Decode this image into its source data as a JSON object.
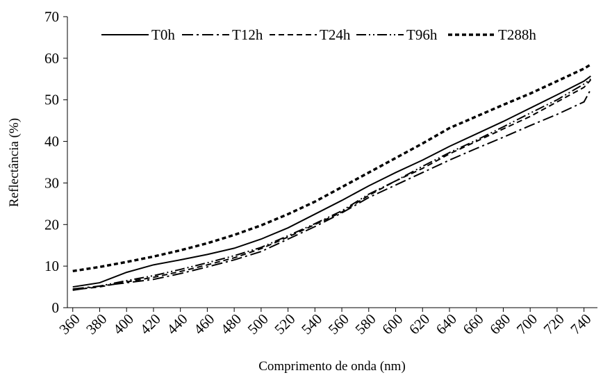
{
  "chart_data": {
    "type": "line",
    "x_label": "Comprimento de onda (nm)",
    "y_label": "Reflectância (%)",
    "x": [
      360,
      380,
      400,
      420,
      440,
      460,
      480,
      500,
      520,
      540,
      560,
      580,
      600,
      620,
      640,
      660,
      680,
      700,
      720,
      740,
      745
    ],
    "series": [
      {
        "name": "T0h",
        "color": "#000000",
        "dash": "solid",
        "values": [
          5,
          6,
          8.5,
          10.3,
          11.5,
          12.8,
          14.3,
          16.5,
          19.2,
          22.5,
          25.8,
          29.3,
          32.5,
          35.5,
          38.8,
          41.8,
          44.8,
          48,
          51.2,
          54.5,
          55.7
        ]
      },
      {
        "name": "T12h",
        "color": "#000000",
        "dash": "dashdot",
        "values": [
          4.5,
          5.2,
          6,
          6.8,
          8.2,
          9.8,
          11.5,
          13.5,
          16.5,
          19.5,
          22.8,
          26.5,
          29.5,
          32.5,
          35.5,
          38.3,
          41,
          43.8,
          46.5,
          49.5,
          52.5
        ]
      },
      {
        "name": "T24h",
        "color": "#000000",
        "dash": "dashed",
        "values": [
          4.3,
          5,
          6.2,
          7.3,
          8.7,
          10.3,
          12,
          14.2,
          17,
          20,
          23,
          27,
          30.5,
          33.5,
          37,
          40,
          43,
          46,
          49.5,
          53,
          54.8
        ]
      },
      {
        "name": "T96h",
        "color": "#000000",
        "dash": "dashdotdot",
        "values": [
          4.2,
          5.2,
          6.5,
          7.7,
          9.2,
          10.8,
          12.5,
          14.5,
          17.3,
          20.2,
          23.3,
          27.3,
          30.5,
          34,
          37.3,
          40.3,
          43.5,
          46.8,
          50,
          53.8,
          55
        ]
      },
      {
        "name": "T288h",
        "color": "#000000",
        "dash": "heavydash",
        "values": [
          8.8,
          9.8,
          11,
          12.3,
          13.8,
          15.5,
          17.5,
          19.8,
          22.5,
          25.5,
          29,
          32.5,
          36,
          39.5,
          43.2,
          46,
          48.8,
          51.5,
          54.5,
          57.5,
          58.5
        ]
      }
    ],
    "xlim": [
      356,
      750
    ],
    "xticks": [
      360,
      380,
      400,
      420,
      440,
      460,
      480,
      500,
      520,
      540,
      560,
      580,
      600,
      620,
      640,
      660,
      680,
      700,
      720,
      740
    ],
    "ylim": [
      0,
      70
    ],
    "yticks": [
      0,
      10,
      20,
      30,
      40,
      50,
      60,
      70
    ],
    "legend": "top"
  }
}
